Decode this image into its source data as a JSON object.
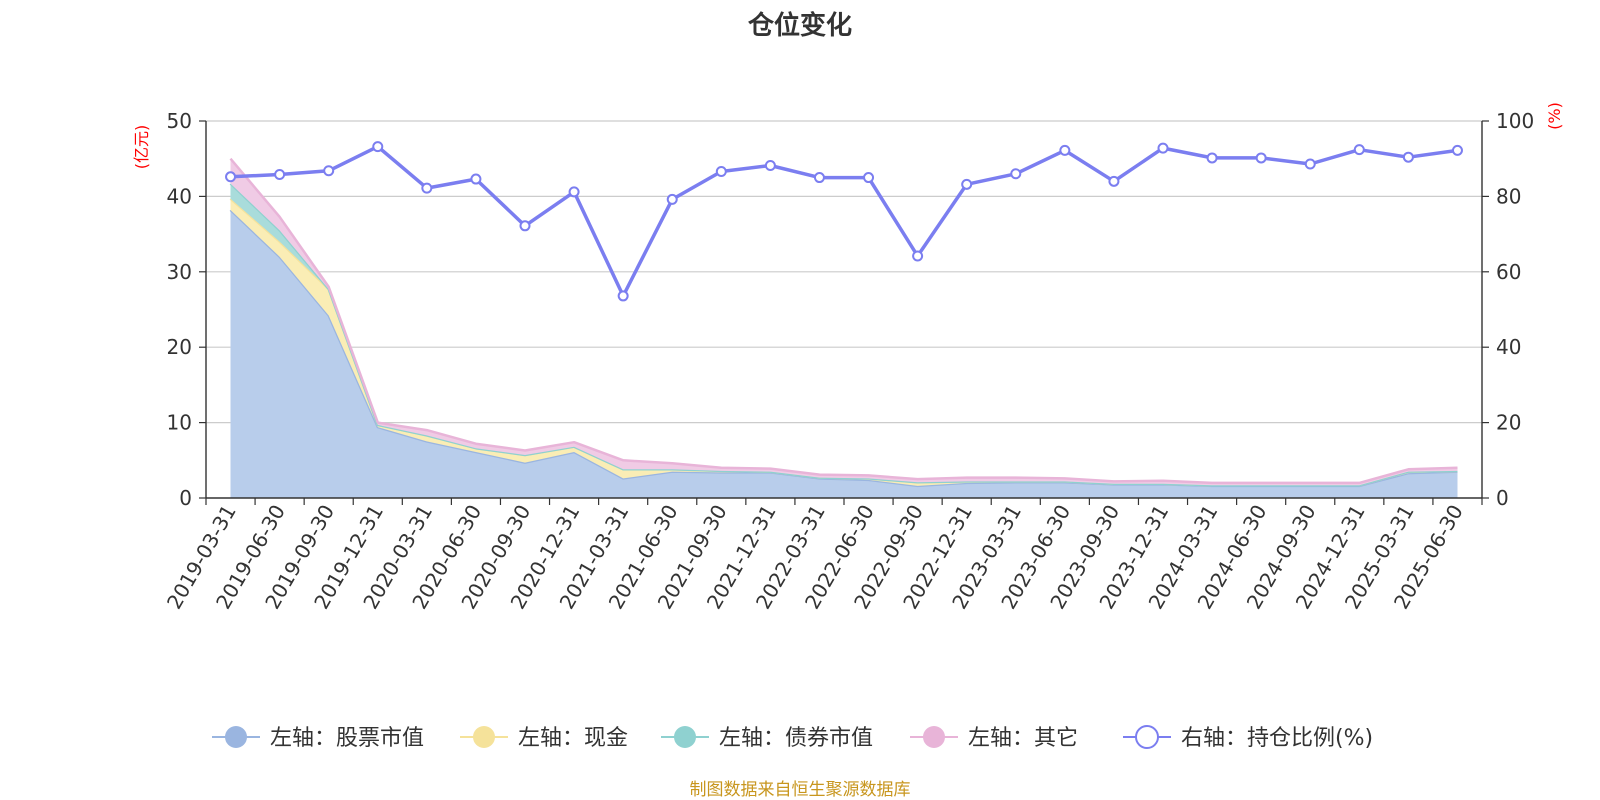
{
  "chart_data": {
    "type": "area",
    "title": "仓位变化",
    "x": [
      "2019-03-31",
      "2019-06-30",
      "2019-09-30",
      "2019-12-31",
      "2020-03-31",
      "2020-06-30",
      "2020-09-30",
      "2020-12-31",
      "2021-03-31",
      "2021-06-30",
      "2021-09-30",
      "2021-12-31",
      "2022-03-31",
      "2022-06-30",
      "2022-09-30",
      "2022-12-31",
      "2023-03-31",
      "2023-06-30",
      "2023-09-30",
      "2023-12-31",
      "2024-03-31",
      "2024-06-30",
      "2024-09-30",
      "2024-12-31",
      "2025-03-31",
      "2025-06-30"
    ],
    "y_left": {
      "unit": "(亿元)",
      "ylim": [
        0,
        50
      ],
      "ticks": [
        0,
        10,
        20,
        30,
        40,
        50
      ]
    },
    "y_right": {
      "unit": "(%)",
      "ylim": [
        0,
        100
      ],
      "ticks": [
        0,
        20,
        40,
        60,
        80,
        100
      ]
    },
    "grid": true,
    "legend_position": "bottom",
    "series": [
      {
        "name": "左轴：股票市值",
        "axis": "left",
        "stacked": true,
        "color": "#9ab5e0",
        "fill": "#b8cdeb",
        "values": [
          38.2,
          32.0,
          24.2,
          9.4,
          7.5,
          6.1,
          4.7,
          6.1,
          2.6,
          3.5,
          3.4,
          3.4,
          2.6,
          2.4,
          1.6,
          2.0,
          2.1,
          2.1,
          1.8,
          1.8,
          1.6,
          1.6,
          1.6,
          1.6,
          3.3,
          3.5
        ]
      },
      {
        "name": "左轴：现金",
        "axis": "left",
        "stacked": true,
        "color": "#f5e29a",
        "fill": "#faedb5",
        "values": [
          1.5,
          2.0,
          3.5,
          0.3,
          0.8,
          0.5,
          1.0,
          0.7,
          1.2,
          0.3,
          0.2,
          0.1,
          0.1,
          0.2,
          0.5,
          0.2,
          0.1,
          0.1,
          0.1,
          0.1,
          0.1,
          0.1,
          0.1,
          0.1,
          0.2,
          0.1
        ]
      },
      {
        "name": "左轴：债券市值",
        "axis": "left",
        "stacked": true,
        "color": "#8fd1d0",
        "fill": "#a9dcdb",
        "values": [
          2.0,
          1.5,
          0.0,
          0.0,
          0.0,
          0.0,
          0.0,
          0.0,
          0.0,
          0.0,
          0.0,
          0.0,
          0.0,
          0.0,
          0.0,
          0.0,
          0.0,
          0.0,
          0.0,
          0.0,
          0.0,
          0.0,
          0.0,
          0.0,
          0.0,
          0.0
        ]
      },
      {
        "name": "左轴：其它",
        "axis": "left",
        "stacked": true,
        "color": "#e8b4d8",
        "fill": "#f0cbe5",
        "values": [
          3.3,
          1.8,
          0.3,
          0.3,
          0.7,
          0.6,
          0.6,
          0.6,
          1.2,
          0.8,
          0.4,
          0.4,
          0.4,
          0.4,
          0.4,
          0.5,
          0.5,
          0.4,
          0.3,
          0.4,
          0.3,
          0.3,
          0.3,
          0.3,
          0.3,
          0.4
        ]
      },
      {
        "name": "右轴：持仓比例(%)",
        "axis": "right",
        "type": "line",
        "color": "#7b7ef0",
        "values": [
          85.2,
          85.8,
          86.8,
          93.2,
          82.2,
          84.6,
          72.2,
          81.2,
          53.6,
          79.2,
          86.6,
          88.2,
          85.0,
          85.0,
          64.2,
          83.2,
          86.0,
          92.2,
          84.0,
          92.8,
          90.2,
          90.2,
          88.6,
          92.4,
          90.4,
          92.2
        ]
      }
    ],
    "source": "制图数据来自恒生聚源数据库"
  }
}
